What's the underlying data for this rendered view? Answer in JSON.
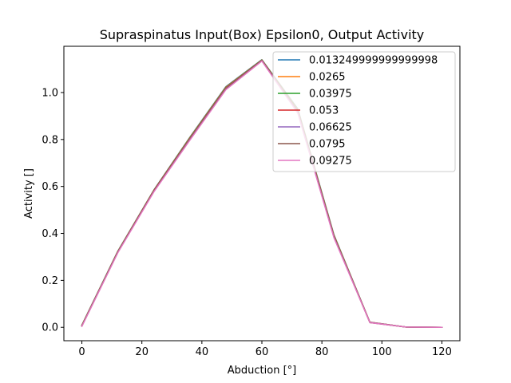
{
  "chart_data": {
    "type": "line",
    "title": "Supraspinatus Input(Box) Epsilon0, Output Activity",
    "xlabel": "Abduction [°]",
    "ylabel": "Activity []",
    "xlim": [
      -6,
      126
    ],
    "ylim": [
      -0.057,
      1.197
    ],
    "xticks": [
      0,
      20,
      40,
      60,
      80,
      100,
      120
    ],
    "yticks": [
      0.0,
      0.2,
      0.4,
      0.6,
      0.8,
      1.0
    ],
    "xtick_labels": [
      "0",
      "20",
      "40",
      "60",
      "80",
      "100",
      "120"
    ],
    "ytick_labels": [
      "0.0",
      "0.2",
      "0.4",
      "0.6",
      "0.8",
      "1.0"
    ],
    "grid": false,
    "legend_position": "top-right",
    "x": [
      0,
      12,
      24,
      36,
      48,
      60,
      72,
      84,
      96,
      108,
      120
    ],
    "series": [
      {
        "name": "0.013249999999999998",
        "color": "#1f77b4",
        "values": [
          0.01,
          0.325,
          0.585,
          0.81,
          1.025,
          1.14,
          0.93,
          0.395,
          0.022,
          0.001,
          0.0
        ]
      },
      {
        "name": "0.0265",
        "color": "#ff7f0e",
        "values": [
          0.009,
          0.324,
          0.584,
          0.808,
          1.023,
          1.139,
          0.927,
          0.393,
          0.022,
          0.001,
          0.0
        ]
      },
      {
        "name": "0.03975",
        "color": "#2ca02c",
        "values": [
          0.008,
          0.323,
          0.583,
          0.806,
          1.021,
          1.138,
          0.924,
          0.391,
          0.021,
          0.001,
          0.0
        ]
      },
      {
        "name": "0.053",
        "color": "#d62728",
        "values": [
          0.007,
          0.322,
          0.582,
          0.804,
          1.019,
          1.137,
          0.921,
          0.389,
          0.021,
          0.001,
          0.0
        ]
      },
      {
        "name": "0.06625",
        "color": "#9467bd",
        "values": [
          0.006,
          0.321,
          0.58,
          0.802,
          1.017,
          1.136,
          0.918,
          0.387,
          0.021,
          0.001,
          0.0
        ]
      },
      {
        "name": "0.0795",
        "color": "#8c564b",
        "values": [
          0.005,
          0.32,
          0.579,
          0.8,
          1.015,
          1.135,
          0.915,
          0.385,
          0.02,
          0.001,
          0.0
        ]
      },
      {
        "name": "0.09275",
        "color": "#e377c2",
        "values": [
          0.004,
          0.318,
          0.577,
          0.797,
          1.012,
          1.134,
          0.912,
          0.382,
          0.02,
          0.001,
          0.0
        ]
      }
    ]
  }
}
